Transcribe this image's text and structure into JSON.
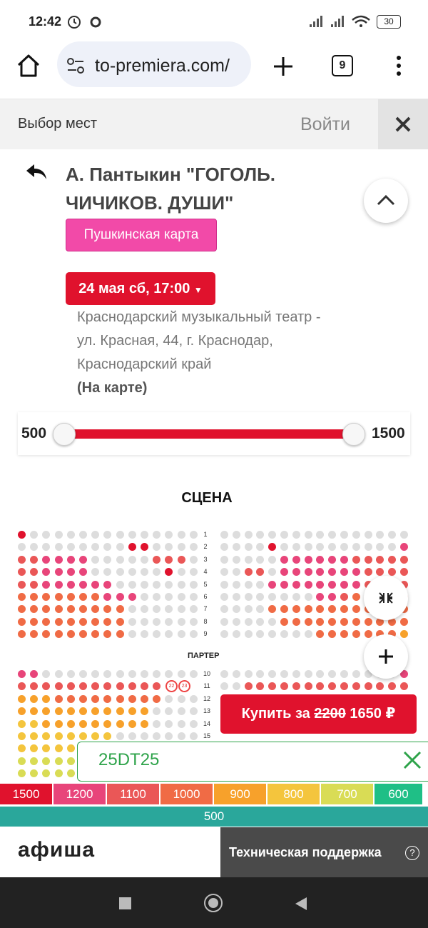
{
  "status_bar": {
    "time": "12:42",
    "battery": "30"
  },
  "browser": {
    "url": "to-premiera.com/",
    "tab_count": "9"
  },
  "header": {
    "title": "Выбор мест",
    "login": "Войти"
  },
  "event": {
    "title": "А. Пантыкин \"ГОГОЛЬ. ЧИЧИКОВ. ДУШИ\"",
    "badge": "Пушкинская карта",
    "date": "24 мая сб, 17:00",
    "venue": "Краснодарский музыкальный театр - ул. Красная, 44, г. Краснодар, Краснодарский край",
    "map_link": "(На карте)"
  },
  "price_filter": {
    "min_label": "500",
    "max_label": "1500"
  },
  "seatmap": {
    "stage": "СЦЕНА",
    "section": "ПАРТЕР",
    "rows_top": [
      "1",
      "2",
      "3",
      "4",
      "5",
      "6",
      "7",
      "8",
      "9"
    ],
    "rows_bottom": [
      "10",
      "11",
      "12",
      "13",
      "14",
      "15"
    ],
    "selected": [
      "22",
      "23"
    ]
  },
  "buy": {
    "label": "Купить за",
    "old_price": "2200",
    "new_price": "1650 ₽"
  },
  "promo": {
    "code": "25DT25"
  },
  "legend": [
    {
      "label": "1500",
      "color": "#e0122d"
    },
    {
      "label": "1200",
      "color": "#e8457a"
    },
    {
      "label": "1100",
      "color": "#ea5757"
    },
    {
      "label": "1000",
      "color": "#f06b45"
    },
    {
      "label": "900",
      "color": "#f7a12b"
    },
    {
      "label": "800",
      "color": "#f4c53d"
    },
    {
      "label": "700",
      "color": "#d9dc55"
    },
    {
      "label": "600",
      "color": "#1fbf86"
    }
  ],
  "legend_500": {
    "label": "500",
    "color": "#2aa79b"
  },
  "footer": {
    "brand": "афиша",
    "support": "Техническая поддержка"
  }
}
